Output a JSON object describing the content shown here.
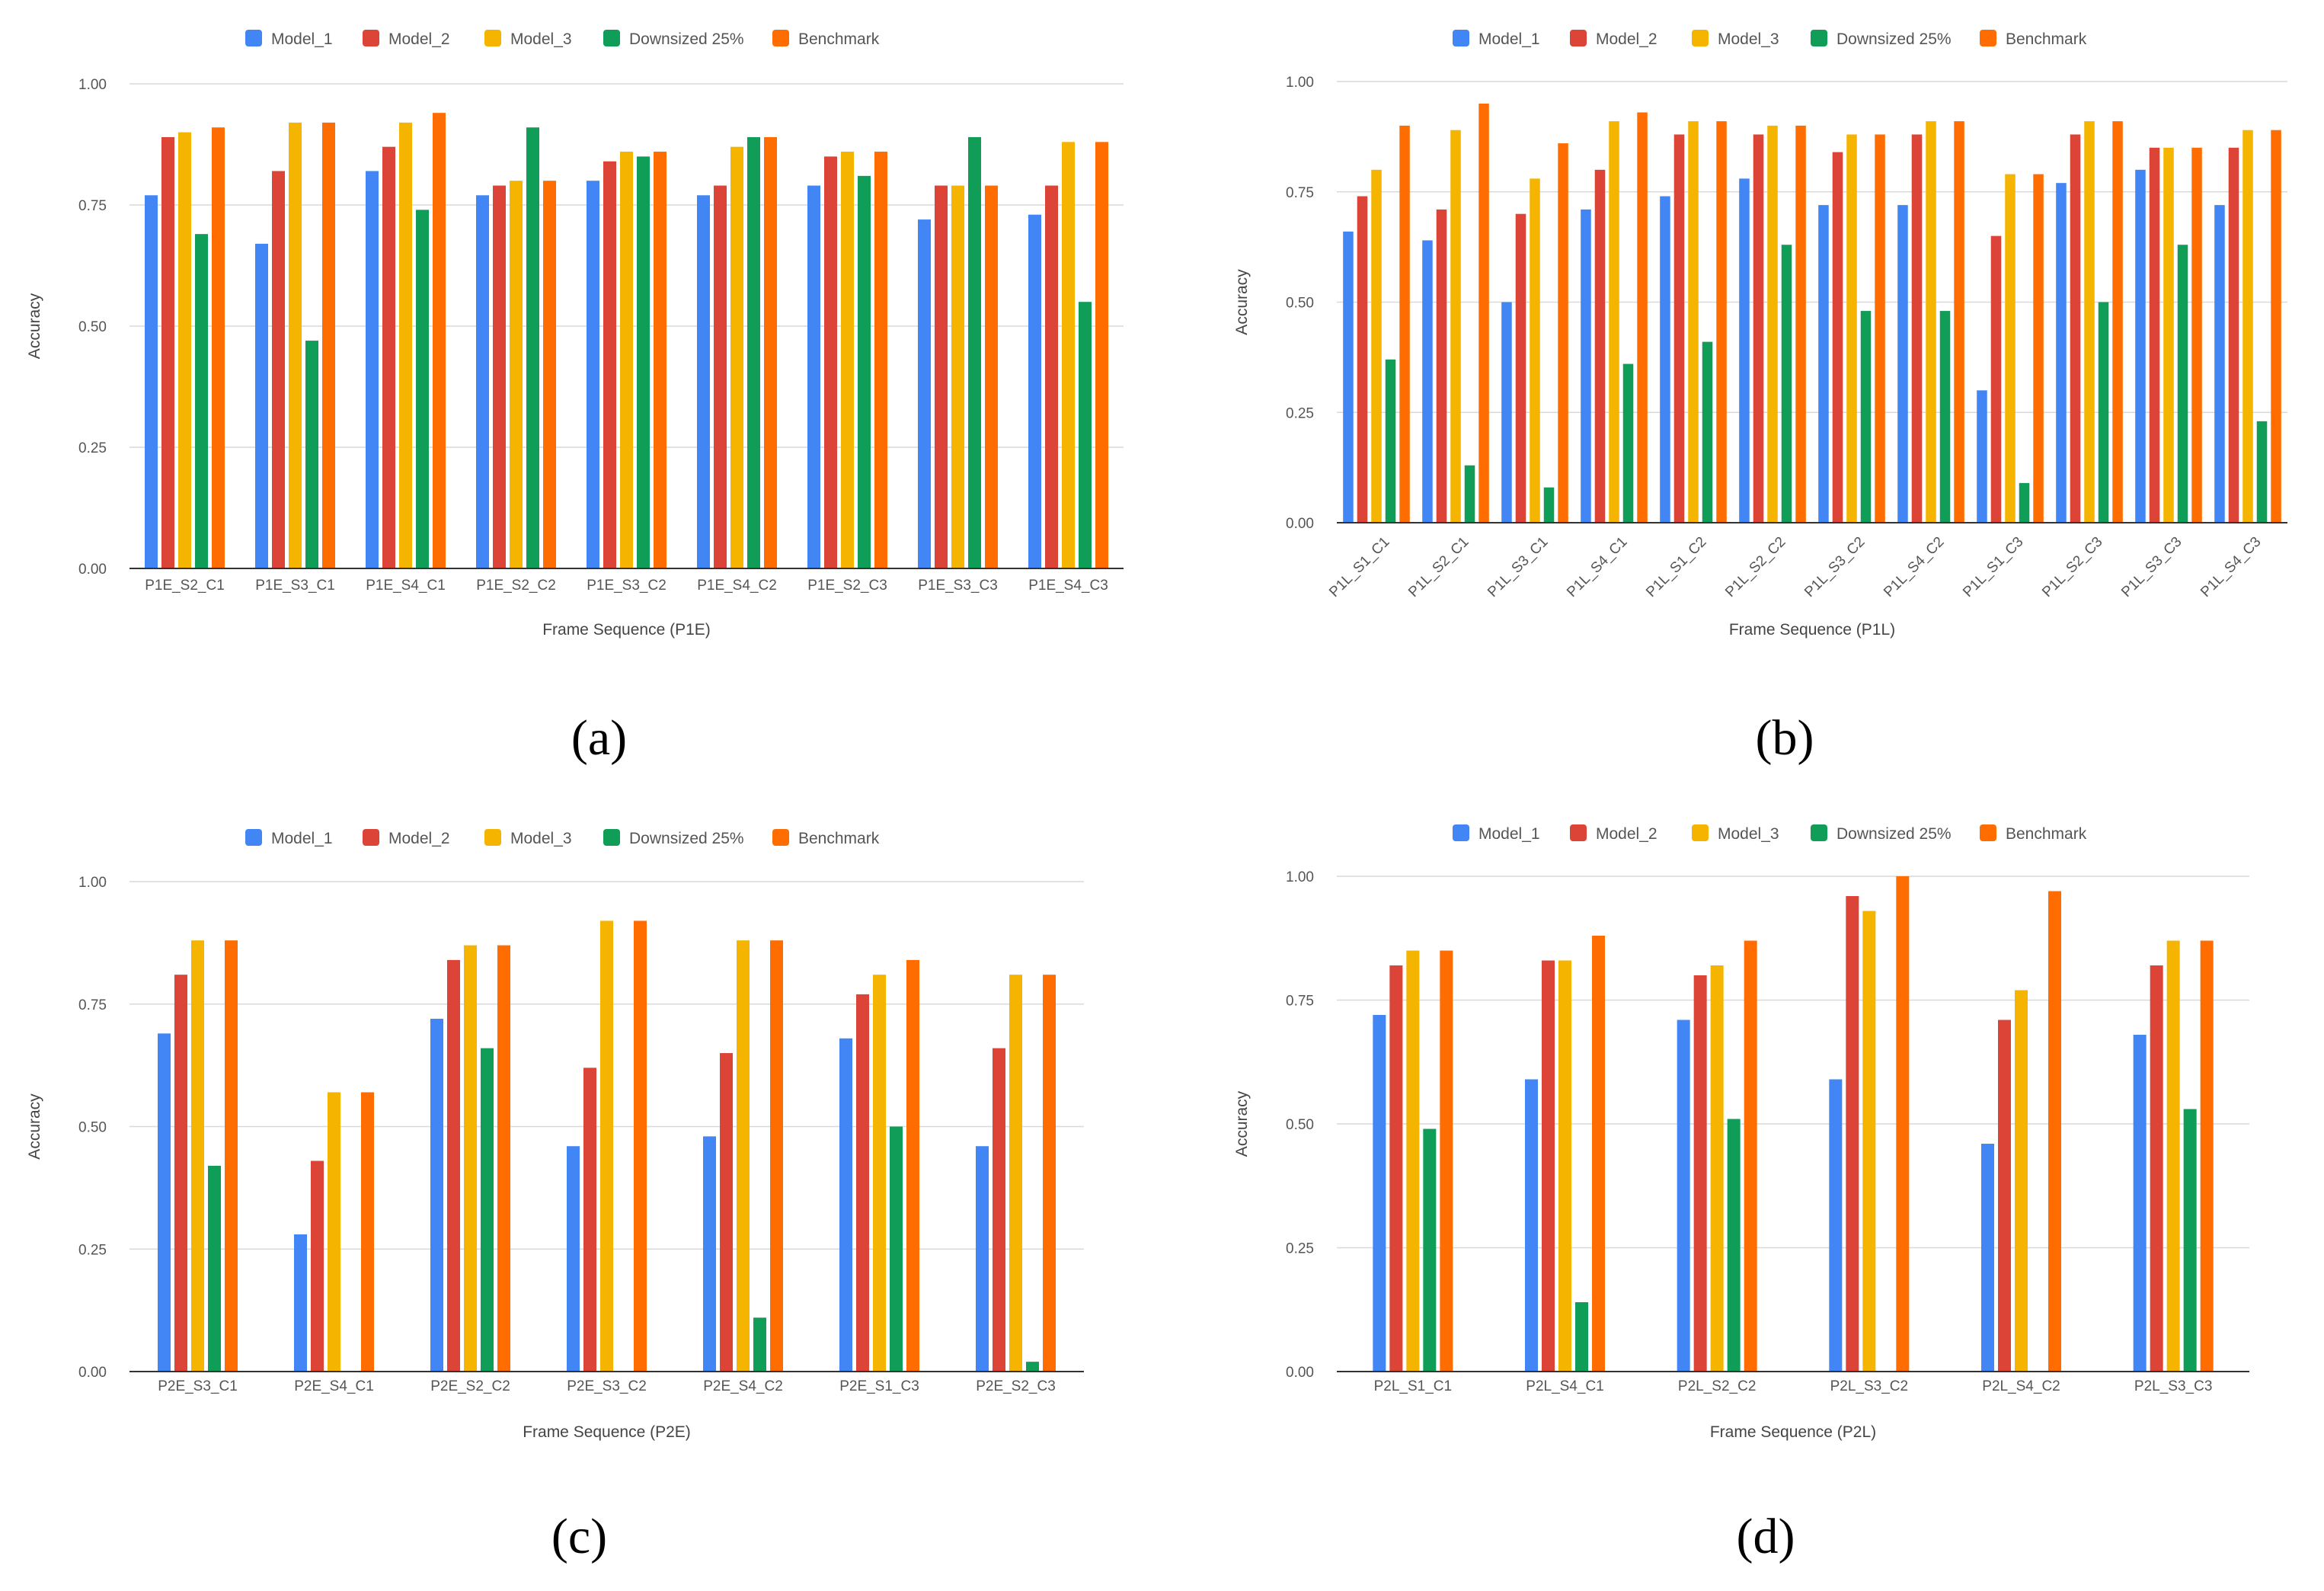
{
  "colors": {
    "Model_1": "#4285f4",
    "Model_2": "#db4437",
    "Model_3": "#f4b400",
    "Downsized 25%": "#0f9d58",
    "Benchmark": "#ff6d01",
    "grid": "#d9d9d9",
    "text": "#555555"
  },
  "chart_data": [
    {
      "type": "bar",
      "panel_label": "(a)",
      "title": "",
      "xlabel": "Frame Sequence (P1E)",
      "ylabel": "Accuracy",
      "ylim": [
        0,
        1
      ],
      "yticks": [
        "0.00",
        "0.25",
        "0.50",
        "0.75",
        "1.00"
      ],
      "legend_position": "top",
      "tick_rotation": 0,
      "categories": [
        "P1E_S2_C1",
        "P1E_S3_C1",
        "P1E_S4_C1",
        "P1E_S2_C2",
        "P1E_S3_C2",
        "P1E_S4_C2",
        "P1E_S2_C3",
        "P1E_S3_C3",
        "P1E_S4_C3"
      ],
      "series": [
        {
          "name": "Model_1",
          "values": [
            0.77,
            0.67,
            0.82,
            0.77,
            0.8,
            0.77,
            0.79,
            0.72,
            0.73
          ]
        },
        {
          "name": "Model_2",
          "values": [
            0.89,
            0.82,
            0.87,
            0.79,
            0.84,
            0.79,
            0.85,
            0.79,
            0.79
          ]
        },
        {
          "name": "Model_3",
          "values": [
            0.9,
            0.92,
            0.92,
            0.8,
            0.86,
            0.87,
            0.86,
            0.79,
            0.88
          ]
        },
        {
          "name": "Downsized 25%",
          "values": [
            0.69,
            0.47,
            0.74,
            0.91,
            0.85,
            0.89,
            0.81,
            0.89,
            0.55
          ]
        },
        {
          "name": "Benchmark",
          "values": [
            0.91,
            0.92,
            0.94,
            0.8,
            0.86,
            0.89,
            0.86,
            0.79,
            0.88
          ]
        }
      ]
    },
    {
      "type": "bar",
      "panel_label": "(b)",
      "title": "",
      "xlabel": "Frame Sequence (P1L)",
      "ylabel": "Accuracy",
      "ylim": [
        0,
        1
      ],
      "yticks": [
        "0.00",
        "0.25",
        "0.50",
        "0.75",
        "1.00"
      ],
      "legend_position": "top",
      "tick_rotation": -45,
      "categories": [
        "P1L_S1_C1",
        "P1L_S2_C1",
        "P1L_S3_C1",
        "P1L_S4_C1",
        "P1L_S1_C2",
        "P1L_S2_C2",
        "P1L_S3_C2",
        "P1L_S4_C2",
        "P1L_S1_C3",
        "P1L_S2_C3",
        "P1L_S3_C3",
        "P1L_S4_C3"
      ],
      "series": [
        {
          "name": "Model_1",
          "values": [
            0.66,
            0.64,
            0.5,
            0.71,
            0.74,
            0.78,
            0.72,
            0.72,
            0.3,
            0.77,
            0.8,
            0.72
          ]
        },
        {
          "name": "Model_2",
          "values": [
            0.74,
            0.71,
            0.7,
            0.8,
            0.88,
            0.88,
            0.84,
            0.88,
            0.65,
            0.88,
            0.85,
            0.85
          ]
        },
        {
          "name": "Model_3",
          "values": [
            0.8,
            0.89,
            0.78,
            0.91,
            0.91,
            0.9,
            0.88,
            0.91,
            0.79,
            0.91,
            0.85,
            0.89
          ]
        },
        {
          "name": "Downsized 25%",
          "values": [
            0.37,
            0.13,
            0.08,
            0.36,
            0.41,
            0.63,
            0.48,
            0.48,
            0.09,
            0.5,
            0.63,
            0.23
          ]
        },
        {
          "name": "Benchmark",
          "values": [
            0.9,
            0.95,
            0.86,
            0.93,
            0.91,
            0.9,
            0.88,
            0.91,
            0.79,
            0.91,
            0.85,
            0.89
          ]
        }
      ]
    },
    {
      "type": "bar",
      "panel_label": "(c)",
      "title": "",
      "xlabel": "Frame Sequence (P2E)",
      "ylabel": "Accuracy",
      "ylim": [
        0,
        1
      ],
      "yticks": [
        "0.00",
        "0.25",
        "0.50",
        "0.75",
        "1.00"
      ],
      "legend_position": "top",
      "tick_rotation": 0,
      "categories": [
        "P2E_S3_C1",
        "P2E_S4_C1",
        "P2E_S2_C2",
        "P2E_S3_C2",
        "P2E_S4_C2",
        "P2E_S1_C3",
        "P2E_S2_C3"
      ],
      "series": [
        {
          "name": "Model_1",
          "values": [
            0.69,
            0.28,
            0.72,
            0.46,
            0.48,
            0.68,
            0.46
          ]
        },
        {
          "name": "Model_2",
          "values": [
            0.81,
            0.43,
            0.84,
            0.62,
            0.65,
            0.77,
            0.66
          ]
        },
        {
          "name": "Model_3",
          "values": [
            0.88,
            0.57,
            0.87,
            0.92,
            0.88,
            0.81,
            0.81
          ]
        },
        {
          "name": "Downsized 25%",
          "values": [
            0.42,
            0.0,
            0.66,
            0.0,
            0.11,
            0.5,
            0.02
          ]
        },
        {
          "name": "Benchmark",
          "values": [
            0.88,
            0.57,
            0.87,
            0.92,
            0.88,
            0.84,
            0.81
          ]
        }
      ]
    },
    {
      "type": "bar",
      "panel_label": "(d)",
      "title": "",
      "xlabel": "Frame Sequence (P2L)",
      "ylabel": "Accuracy",
      "ylim": [
        0,
        1
      ],
      "yticks": [
        "0.00",
        "0.25",
        "0.50",
        "0.75",
        "1.00"
      ],
      "legend_position": "top",
      "tick_rotation": 0,
      "categories": [
        "P2L_S1_C1",
        "P2L_S4_C1",
        "P2L_S2_C2",
        "P2L_S3_C2",
        "P2L_S4_C2",
        "P2L_S3_C3"
      ],
      "series": [
        {
          "name": "Model_1",
          "values": [
            0.72,
            0.59,
            0.71,
            0.59,
            0.46,
            0.68
          ]
        },
        {
          "name": "Model_2",
          "values": [
            0.82,
            0.83,
            0.8,
            0.96,
            0.71,
            0.82
          ]
        },
        {
          "name": "Model_3",
          "values": [
            0.85,
            0.83,
            0.82,
            0.93,
            0.77,
            0.87
          ]
        },
        {
          "name": "Downsized 25%",
          "values": [
            0.49,
            0.14,
            0.51,
            0.0,
            0.0,
            0.53
          ]
        },
        {
          "name": "Benchmark",
          "values": [
            0.85,
            0.88,
            0.87,
            1.0,
            0.97,
            0.87
          ]
        }
      ]
    }
  ]
}
